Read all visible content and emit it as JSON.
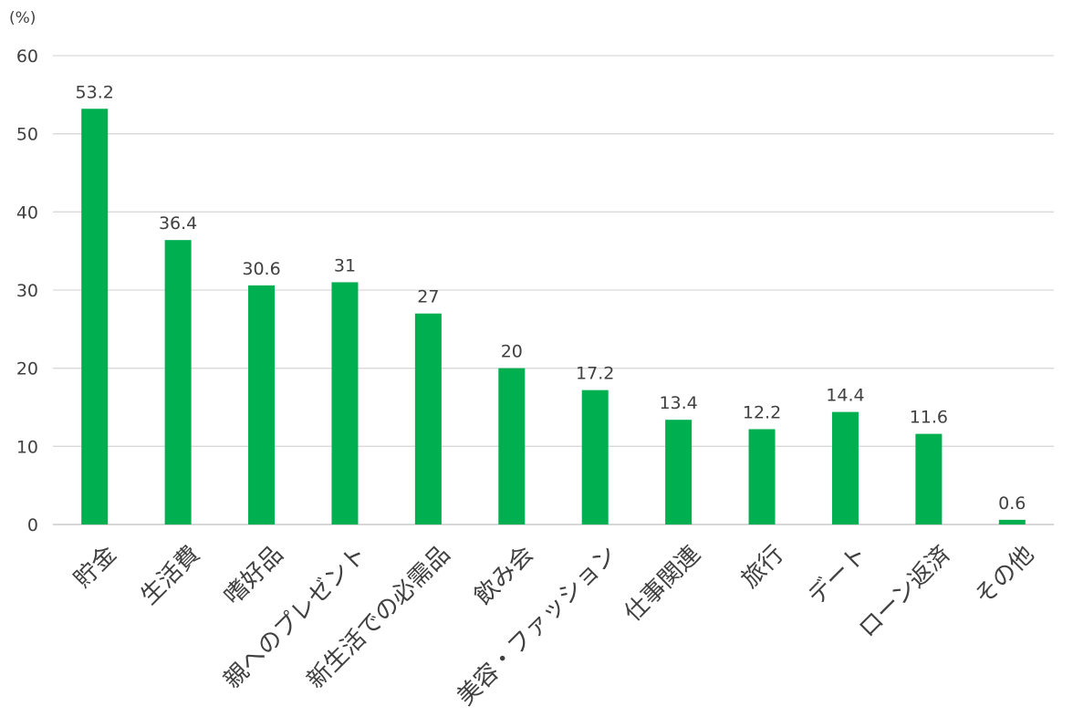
{
  "chart_data": {
    "type": "bar",
    "unit_label": "(%)",
    "categories": [
      "貯金",
      "生活費",
      "嗜好品",
      "親へのプレゼント",
      "新生活での必需品",
      "飲み会",
      "美容・ファッション",
      "仕事関連",
      "旅行",
      "デート",
      "ローン返済",
      "その他"
    ],
    "values": [
      53.2,
      36.4,
      30.6,
      31,
      27,
      20,
      17.2,
      13.4,
      12.2,
      14.4,
      11.6,
      0.6
    ],
    "value_labels": [
      "53.2",
      "36.4",
      "30.6",
      "31",
      "27",
      "20",
      "17.2",
      "13.4",
      "12.2",
      "14.4",
      "11.6",
      "0.6"
    ],
    "y_ticks": [
      "0",
      "10",
      "20",
      "30",
      "40",
      "50",
      "60"
    ],
    "ylim": [
      0,
      60
    ],
    "grid": true,
    "legend": "none",
    "bar_color": "#00b050"
  }
}
